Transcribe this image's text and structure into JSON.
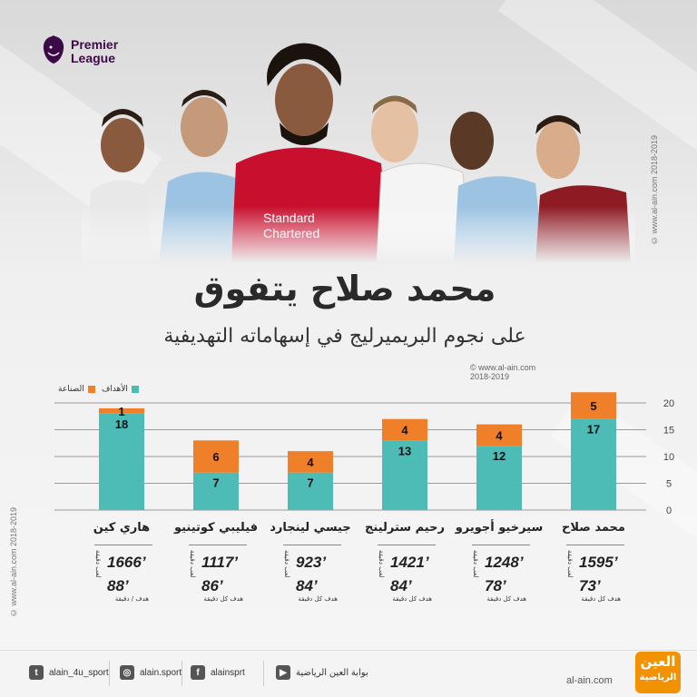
{
  "header": {
    "league_name_line1": "Premier",
    "league_name_line2": "League",
    "title": "محمد صلاح يتفوق",
    "subtitle": "على نجوم البريميرليج في إسهاماته التهديفية",
    "credit_line1": "© www.al-ain.com",
    "credit_line2": "2018-2019",
    "side_watermark": "© www.al-ain.com 2018-2019"
  },
  "colors": {
    "goals": "#4dbbb6",
    "assists": "#f07f2a",
    "grid": "#9a9a9a"
  },
  "legend": {
    "goals_label": "الأهداف",
    "assists_label": "الصناعة"
  },
  "chart_data": {
    "type": "bar",
    "stacked": true,
    "categories": [
      "محمد صلاح",
      "سيرخيو أجويرو",
      "رحيم سترلينج",
      "جيسي لينجارد",
      "فيليبي كوتينيو",
      "هاري كين"
    ],
    "series": [
      {
        "name": "الأهداف",
        "values": [
          17,
          12,
          13,
          7,
          7,
          18
        ]
      },
      {
        "name": "الصناعة",
        "values": [
          5,
          4,
          4,
          4,
          6,
          1
        ]
      }
    ],
    "ylim": [
      0,
      20
    ],
    "yticks": [
      0,
      5,
      10,
      15,
      20
    ],
    "grid": true,
    "legend_position": "top-left"
  },
  "players": [
    {
      "name": "محمد صلاح",
      "minutes": "1595’",
      "ratio": "73’",
      "minutes_label": "لعب دقيقة",
      "ratio_label": "هدف كل دقيقة"
    },
    {
      "name": "سيرخيو أجويرو",
      "minutes": "1248’",
      "ratio": "78’",
      "minutes_label": "لعب دقيقة",
      "ratio_label": "هدف كل دقيقة"
    },
    {
      "name": "رحيم سترلينج",
      "minutes": "1421’",
      "ratio": "84’",
      "minutes_label": "لعب دقيقة",
      "ratio_label": "هدف كل دقيقة"
    },
    {
      "name": "جيسي لينجارد",
      "minutes": "923’",
      "ratio": "84’",
      "minutes_label": "لعب دقيقة",
      "ratio_label": "هدف كل دقيقة"
    },
    {
      "name": "فيليبي كوتينيو",
      "minutes": "1117’",
      "ratio": "86’",
      "minutes_label": "لعب دقيقة",
      "ratio_label": "هدف كل دقيقة"
    },
    {
      "name": "هاري كين",
      "minutes": "1666’",
      "ratio": "88’",
      "minutes_label": "لعب دقيقة",
      "ratio_label": "هدف / دقيقة"
    }
  ],
  "footer": {
    "twitter": "alain_4u_sport",
    "instagram": "alain.sport",
    "facebook": "alainsprt",
    "youtube": "بوابة العين الرياضية",
    "site": "al-ain.com",
    "brand_line1": "العين",
    "brand_line2": "الرياضية",
    "icons": [
      "twitter-icon",
      "instagram-icon",
      "facebook-icon",
      "youtube-icon"
    ]
  }
}
